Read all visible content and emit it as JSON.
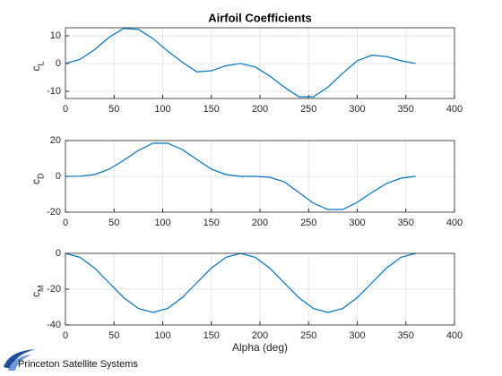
{
  "chart_data": [
    {
      "type": "line",
      "title": "Airfoil Coefficients",
      "ylabel": {
        "text": "c",
        "subscript": "L"
      },
      "x": [
        0,
        15,
        30,
        45,
        60,
        75,
        90,
        105,
        120,
        135,
        150,
        165,
        180,
        195,
        210,
        225,
        240,
        255,
        270,
        285,
        300,
        315,
        330,
        345,
        360
      ],
      "series": [
        {
          "color": "#0072bd",
          "values": [
            0,
            1.5,
            5,
            9.5,
            12.7,
            12.3,
            9,
            4.5,
            0.5,
            -3,
            -2.6,
            -0.8,
            0,
            -1.2,
            -4.5,
            -8.5,
            -12,
            -12,
            -8.5,
            -3.5,
            1,
            3,
            2.5,
            1,
            0
          ]
        }
      ],
      "xlim": [
        0,
        400
      ],
      "xticks": [
        0,
        50,
        100,
        150,
        200,
        250,
        300,
        350,
        400
      ],
      "ylim": [
        -12.6,
        12.9
      ],
      "yticks": [
        -10,
        0,
        10
      ],
      "grid": true
    },
    {
      "type": "line",
      "ylabel": {
        "text": "c",
        "subscript": "D"
      },
      "x": [
        0,
        15,
        30,
        45,
        60,
        75,
        90,
        105,
        120,
        135,
        150,
        165,
        180,
        195,
        210,
        225,
        240,
        255,
        270,
        285,
        300,
        315,
        330,
        345,
        360
      ],
      "series": [
        {
          "color": "#0072bd",
          "values": [
            0,
            0.1,
            1,
            4,
            9,
            14.5,
            18.5,
            18.5,
            15,
            9.5,
            4,
            1,
            0,
            0,
            -0.5,
            -3,
            -9,
            -15,
            -18.5,
            -18.5,
            -14.5,
            -9,
            -4,
            -1,
            0
          ]
        }
      ],
      "xlim": [
        0,
        400
      ],
      "xticks": [
        0,
        50,
        100,
        150,
        200,
        250,
        300,
        350,
        400
      ],
      "ylim": [
        -20,
        20
      ],
      "yticks": [
        -20,
        0,
        20
      ],
      "grid": true
    },
    {
      "type": "line",
      "ylabel": {
        "text": "c",
        "subscript": "M"
      },
      "xlabel": "Alpha (deg)",
      "x": [
        0,
        15,
        30,
        45,
        60,
        75,
        90,
        105,
        120,
        135,
        150,
        165,
        180,
        195,
        210,
        225,
        240,
        255,
        270,
        285,
        300,
        315,
        330,
        345,
        360
      ],
      "series": [
        {
          "color": "#0072bd",
          "values": [
            0,
            -2.2,
            -8.25,
            -16.5,
            -24.75,
            -30.8,
            -33,
            -30.8,
            -24.75,
            -16.5,
            -8.25,
            -2.2,
            0,
            -2.2,
            -8.25,
            -16.5,
            -24.75,
            -30.8,
            -33,
            -30.8,
            -24.75,
            -16.5,
            -8.25,
            -2.2,
            0
          ]
        }
      ],
      "xlim": [
        0,
        400
      ],
      "xticks": [
        0,
        50,
        100,
        150,
        200,
        250,
        300,
        350,
        400
      ],
      "ylim": [
        -40,
        0
      ],
      "yticks": [
        -40,
        -20,
        0
      ],
      "grid": true
    }
  ],
  "logo": {
    "text": "Princeton Satellite Systems"
  }
}
